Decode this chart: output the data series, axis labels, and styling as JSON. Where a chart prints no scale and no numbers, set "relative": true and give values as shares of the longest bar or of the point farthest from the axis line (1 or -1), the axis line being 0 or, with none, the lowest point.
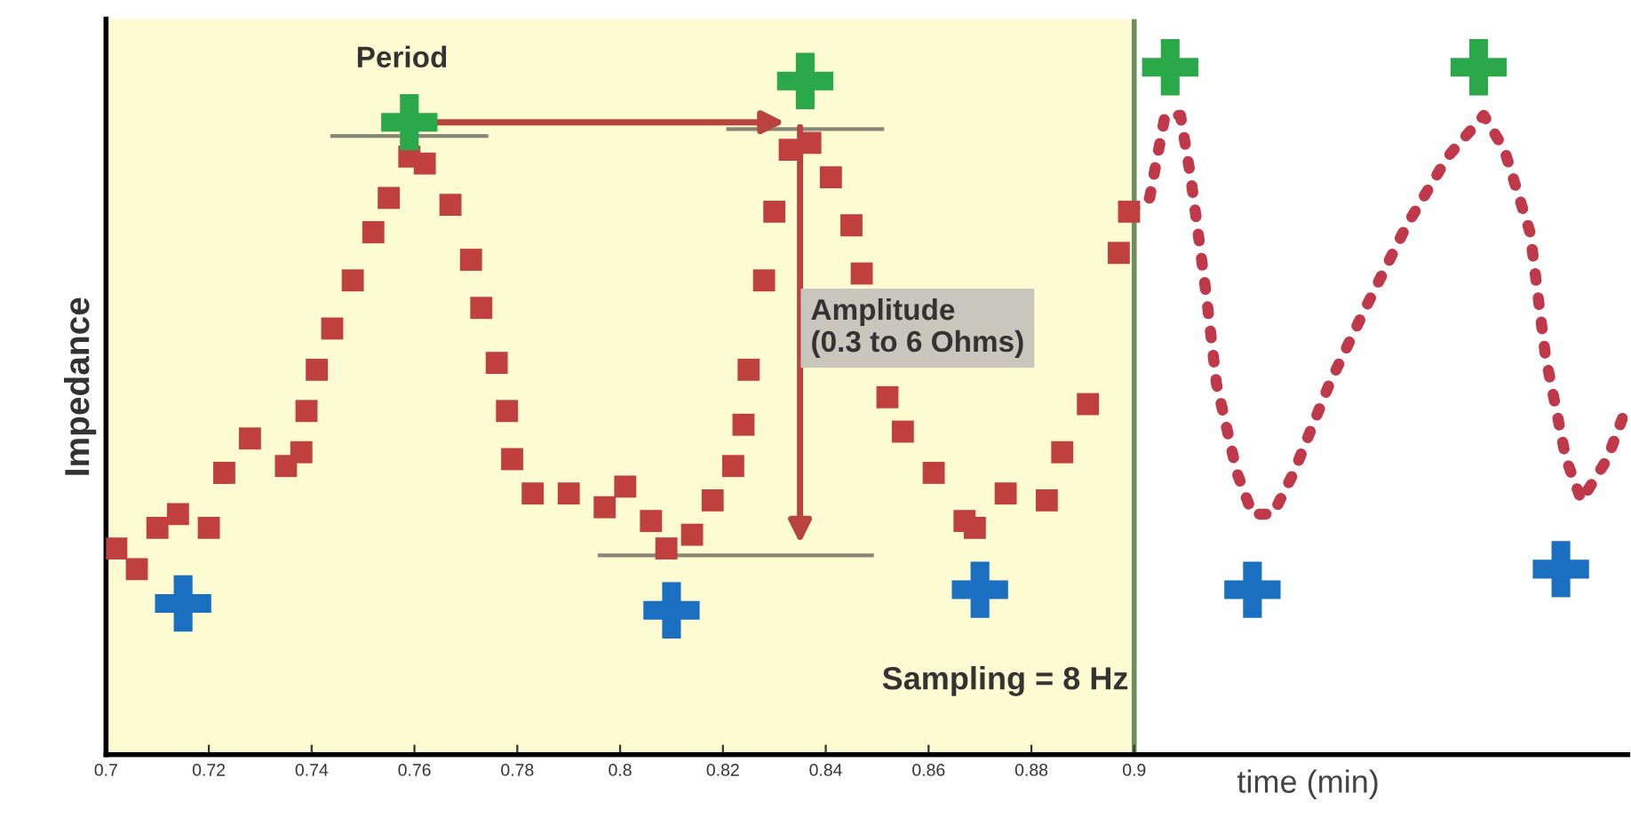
{
  "chart_data": {
    "type": "line",
    "relative": true,
    "xlabel": "time (min)",
    "ylabel": "Impedance",
    "xlim": [
      0.7,
      0.996
    ],
    "xticks": [
      0.7,
      0.72,
      0.74,
      0.76,
      0.78,
      0.8,
      0.82,
      0.84,
      0.86,
      0.88,
      0.9
    ],
    "tick_labels": "x",
    "grid": false,
    "legend": false,
    "bands": [
      {
        "axis": "x",
        "from": 0.7,
        "to": 0.9,
        "color": "#fdfbd2"
      }
    ],
    "ref_lines": [
      {
        "axis": "x",
        "value": 0.9,
        "color": "#6f8f5a"
      }
    ],
    "annotations": [
      "Period",
      "Amplitude\n(0.3 to 6 Ohms)",
      "Sampling = 8 Hz"
    ],
    "series": [
      {
        "type": "scatter",
        "marker": "square",
        "color": "#c0403f",
        "x": [
          0.702,
          0.706,
          0.71,
          0.714,
          0.72,
          0.723,
          0.728,
          0.735,
          0.738,
          0.739,
          0.741,
          0.744,
          0.748,
          0.752,
          0.755,
          0.759,
          0.762,
          0.767,
          0.771,
          0.773,
          0.776,
          0.778,
          0.779,
          0.783,
          0.79,
          0.797,
          0.801,
          0.806,
          0.809,
          0.814,
          0.818,
          0.822,
          0.824,
          0.825,
          0.828,
          0.83,
          0.833,
          0.837,
          0.841,
          0.845,
          0.847,
          0.852,
          0.855,
          0.861,
          0.867,
          0.869,
          0.875,
          0.883,
          0.886,
          0.891,
          0.897,
          0.899
        ],
        "values": [
          0.3,
          0.27,
          0.33,
          0.35,
          0.33,
          0.41,
          0.46,
          0.42,
          0.44,
          0.5,
          0.56,
          0.62,
          0.69,
          0.76,
          0.81,
          0.87,
          0.86,
          0.8,
          0.72,
          0.65,
          0.57,
          0.5,
          0.43,
          0.38,
          0.38,
          0.36,
          0.39,
          0.34,
          0.3,
          0.32,
          0.37,
          0.42,
          0.48,
          0.56,
          0.69,
          0.79,
          0.88,
          0.89,
          0.84,
          0.77,
          0.7,
          0.52,
          0.47,
          0.41,
          0.34,
          0.33,
          0.38,
          0.37,
          0.44,
          0.51,
          0.73,
          0.79
        ]
      },
      {
        "marker": "none",
        "line_style": "dotted",
        "color": "#c0394a",
        "x": [
          0.899,
          0.903,
          0.906,
          0.909,
          0.911,
          0.914,
          0.916,
          0.92,
          0.923,
          0.927,
          0.931,
          0.938,
          0.945,
          0.953,
          0.961,
          0.968,
          0.972,
          0.977,
          0.98,
          0.984,
          0.987,
          0.992,
          0.996
        ],
        "values": [
          0.79,
          0.81,
          0.93,
          0.93,
          0.84,
          0.67,
          0.54,
          0.41,
          0.35,
          0.35,
          0.41,
          0.54,
          0.65,
          0.77,
          0.87,
          0.93,
          0.88,
          0.76,
          0.58,
          0.43,
          0.37,
          0.43,
          0.51
        ]
      },
      {
        "type": "scatter",
        "marker": "cross",
        "color": "#2aa84a",
        "x": [
          0.759,
          0.836,
          0.907,
          0.967
        ],
        "values": [
          0.92,
          0.98,
          1.0,
          1.0
        ]
      },
      {
        "type": "scatter",
        "marker": "cross",
        "color": "#1a6fc0",
        "x": [
          0.715,
          0.81,
          0.87,
          0.923,
          0.983
        ],
        "values": [
          0.22,
          0.21,
          0.24,
          0.24,
          0.27
        ]
      }
    ]
  }
}
